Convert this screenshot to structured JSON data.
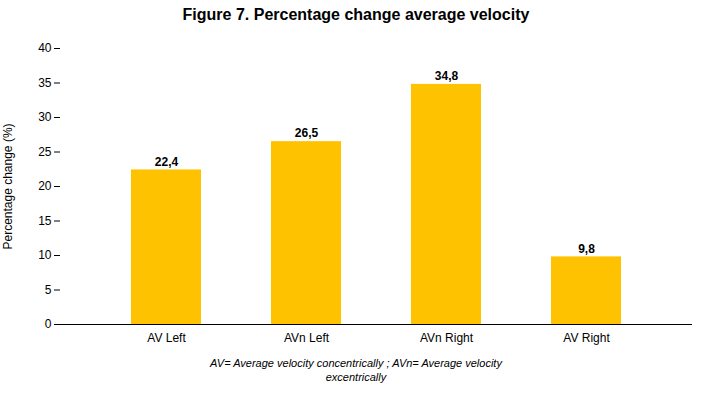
{
  "chart_data": {
    "type": "bar",
    "title": "Figure 7.  Percentage change average velocity",
    "categories": [
      "AV Left",
      "AVn Left",
      "AVn Right",
      "AV Right"
    ],
    "values": [
      22.4,
      26.5,
      34.8,
      9.8
    ],
    "value_labels": [
      "22,4",
      "26,5",
      "34,8",
      "9,8"
    ],
    "data_labels": true,
    "color": "#FFC200",
    "ylabel": "Percentage change (%)",
    "ylim": [
      0,
      40
    ],
    "yticks": [
      0,
      5,
      10,
      15,
      20,
      25,
      30,
      35,
      40
    ],
    "grid": false,
    "annotations": [
      "AV= Average velocity concentrically ; AVn= Average velocity",
      "excentrically"
    ]
  }
}
